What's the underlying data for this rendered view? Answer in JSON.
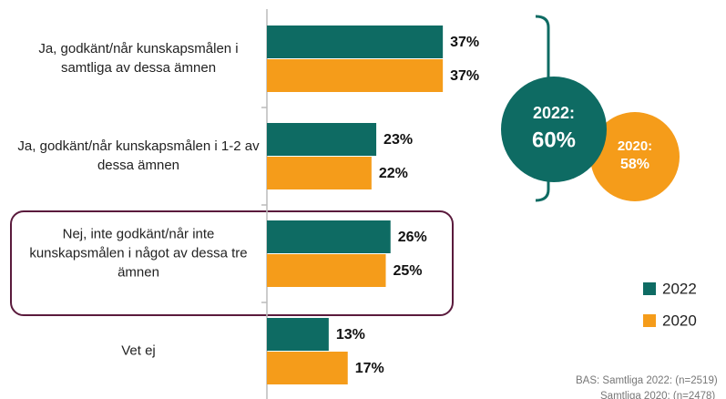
{
  "chart_data": {
    "type": "hbar",
    "categories": [
      "Ja, godkänt/når kunskapsmålen i samtliga av dessa ämnen",
      "Ja, godkänt/når kunskapsmålen i 1-2 av dessa ämnen",
      "Nej, inte godkänt/når inte kunskapsmålen i något av dessa tre ämnen",
      "Vet ej"
    ],
    "series": [
      {
        "name": "2022",
        "color": "#0e6b63",
        "values": [
          37,
          23,
          26,
          13
        ],
        "value_labels": [
          "37%",
          "23%",
          "26%",
          "13%"
        ]
      },
      {
        "name": "2020",
        "color": "#f59c1a",
        "values": [
          37,
          22,
          25,
          17
        ],
        "value_labels": [
          "37%",
          "22%",
          "25%",
          "17%"
        ]
      }
    ],
    "summary": [
      {
        "label": "2022:",
        "value": 60,
        "value_label": "60%",
        "color": "#0e6b63"
      },
      {
        "label": "2020:",
        "value": 58,
        "value_label": "58%",
        "color": "#f59c1a"
      }
    ],
    "footnote": [
      "BAS: Samtliga 2022: (n=2519)",
      "Samtliga 2020: (n=2478)"
    ],
    "highlight_category": 2
  }
}
